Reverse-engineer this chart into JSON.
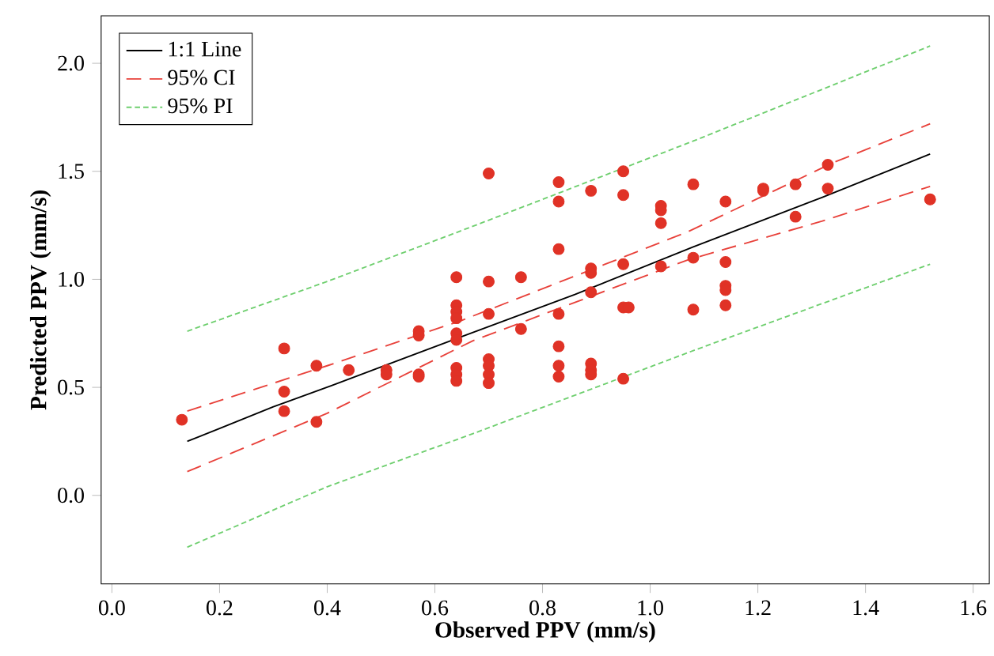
{
  "chart_data": {
    "type": "scatter",
    "xlabel": "Observed  PPV (mm/s)",
    "ylabel": "Predicted PPV (mm/s)",
    "xlim": [
      -0.02,
      1.63
    ],
    "ylim": [
      -0.41,
      2.22
    ],
    "xticks": [
      {
        "value": 0,
        "label": "0.0"
      },
      {
        "value": 0.2,
        "label": "0.2"
      },
      {
        "value": 0.4,
        "label": "0.4"
      },
      {
        "value": 0.6,
        "label": "0.6"
      },
      {
        "value": 0.8,
        "label": "0.8"
      },
      {
        "value": 1,
        "label": "1.0"
      },
      {
        "value": 1.2,
        "label": "1.2"
      },
      {
        "value": 1.4,
        "label": "1.4"
      },
      {
        "value": 1.6,
        "label": "1.6"
      }
    ],
    "yticks": [
      {
        "value": 0,
        "label": "0.0"
      },
      {
        "value": 0.5,
        "label": "0.5"
      },
      {
        "value": 1,
        "label": "1.0"
      },
      {
        "value": 1.5,
        "label": "1.5"
      },
      {
        "value": 2,
        "label": "2.0"
      }
    ],
    "grid": false,
    "legend": "top left",
    "series": [
      {
        "marker": "circle",
        "color": "#e03226",
        "x": [
          0.13,
          0.32,
          0.32,
          0.32,
          0.38,
          0.38,
          0.44,
          0.51,
          0.51,
          0.57,
          0.57,
          0.57,
          0.57,
          0.64,
          0.64,
          0.64,
          0.64,
          0.64,
          0.64,
          0.64,
          0.64,
          0.64,
          0.7,
          0.7,
          0.7,
          0.7,
          0.7,
          0.7,
          0.7,
          0.76,
          0.76,
          0.83,
          0.83,
          0.83,
          0.83,
          0.83,
          0.83,
          0.83,
          0.89,
          0.89,
          0.89,
          0.89,
          0.89,
          0.89,
          0.89,
          0.95,
          0.95,
          0.95,
          0.95,
          0.95,
          0.96,
          1.02,
          1.02,
          1.02,
          1.02,
          1.08,
          1.08,
          1.08,
          1.14,
          1.14,
          1.14,
          1.14,
          1.14,
          1.21,
          1.21,
          1.27,
          1.27,
          1.33,
          1.33,
          1.52
        ],
        "values": [
          0.35,
          0.68,
          0.48,
          0.39,
          0.6,
          0.34,
          0.58,
          0.58,
          0.56,
          0.76,
          0.74,
          0.56,
          0.55,
          1.01,
          0.88,
          0.85,
          0.82,
          0.75,
          0.72,
          0.59,
          0.56,
          0.53,
          1.49,
          0.99,
          0.84,
          0.63,
          0.6,
          0.56,
          0.52,
          1.01,
          0.77,
          1.45,
          1.36,
          1.14,
          0.84,
          0.69,
          0.6,
          0.55,
          1.41,
          1.05,
          1.03,
          0.94,
          0.61,
          0.58,
          0.56,
          1.5,
          1.39,
          1.07,
          0.87,
          0.54,
          0.87,
          1.34,
          1.32,
          1.26,
          1.06,
          1.44,
          1.1,
          0.86,
          1.36,
          1.08,
          0.97,
          0.95,
          0.88,
          1.42,
          1.41,
          1.44,
          1.29,
          1.53,
          1.42,
          1.37
        ]
      },
      {
        "type": "line",
        "name": "1:1 Line",
        "color": "#000000",
        "line_style": "solid",
        "marker": "none",
        "x": [
          0.14,
          0.2,
          0.3,
          0.41,
          0.65,
          0.86,
          1.08,
          1.32,
          1.52
        ],
        "values": [
          0.25,
          0.31,
          0.41,
          0.51,
          0.735,
          0.93,
          1.15,
          1.38,
          1.58
        ]
      },
      {
        "type": "line",
        "name": "95% CI",
        "color": "#e8413a",
        "line_style": "dashed",
        "marker": "none",
        "x": [
          0.14,
          0.4,
          0.65,
          1.07,
          1.34,
          1.52
        ],
        "values": [
          0.39,
          0.6,
          0.81,
          1.22,
          1.54,
          1.72
        ]
      },
      {
        "type": "line",
        "color": "#e8413a",
        "line_style": "dashed",
        "marker": "none",
        "x": [
          0.14,
          0.4,
          0.67,
          1.07,
          1.32,
          1.52
        ],
        "values": [
          0.11,
          0.38,
          0.715,
          1.09,
          1.27,
          1.43
        ]
      },
      {
        "type": "line",
        "name": "95% PI",
        "color": "#6fcf6f",
        "line_style": "dotted",
        "marker": "none",
        "x": [
          0.14,
          0.4,
          0.67,
          1.08,
          1.52
        ],
        "values": [
          0.76,
          0.99,
          1.245,
          1.64,
          2.08
        ]
      },
      {
        "type": "line",
        "color": "#6fcf6f",
        "line_style": "dotted",
        "marker": "none",
        "x": [
          0.14,
          0.4,
          0.67,
          1.08,
          1.52
        ],
        "values": [
          -0.24,
          0.04,
          0.285,
          0.67,
          1.07
        ]
      }
    ]
  }
}
